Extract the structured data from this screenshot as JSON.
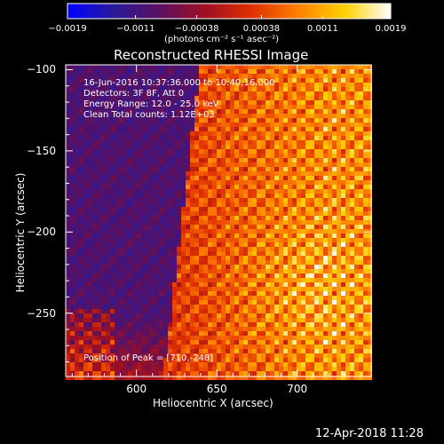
{
  "chart_data": {
    "type": "heatmap",
    "title": "Reconstructed RHESSI Image",
    "xlabel": "Heliocentric X (arcsec)",
    "ylabel": "Heliocentric Y (arcsec)",
    "xlim": [
      556,
      746
    ],
    "ylim": [
      -289,
      -97
    ],
    "x_ticks": [
      600,
      650,
      700
    ],
    "x_tick_labels": [
      "600",
      "650",
      "700"
    ],
    "y_ticks": [
      -100,
      -150,
      -200,
      -250
    ],
    "y_tick_labels": [
      "−100",
      "−150",
      "−200",
      "−250"
    ],
    "colorbar": {
      "range": [
        -0.0019,
        0.0019
      ],
      "ticks": [
        -0.0019,
        -0.0011,
        -0.00038,
        0.00038,
        0.0011,
        0.0019
      ],
      "tick_labels": [
        "−0.0019",
        "−0.0011",
        "−0.00038",
        "0.00038",
        "0.0011",
        "0.0019"
      ],
      "units_label": "(photons cm⁻² s⁻¹ asec⁻²)",
      "colormap": [
        "#0000ff",
        "#2a1a9a",
        "#5a1060",
        "#a01020",
        "#e03000",
        "#ff8000",
        "#ffd000",
        "#ffffff"
      ]
    },
    "peak": {
      "x": 710,
      "y": -248
    },
    "annotations": [
      "16-Jun-2016 10:37:36.000 to 10:40:16.000",
      "Detectors: 3F 8F, Att 0",
      "Energy Range: 12.0 - 25.0 keV",
      "Clean     Total counts: 1.12E+03",
      "Position of Peak = [710,-248]"
    ]
  },
  "footer": {
    "timestamp": "12-Apr-2018 11:28"
  }
}
